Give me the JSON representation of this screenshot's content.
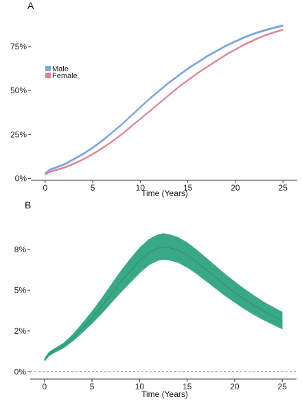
{
  "chart_data": [
    {
      "type": "area",
      "panel_label": "A",
      "xlabel": "Time (Years)",
      "ylabel": "",
      "xlim": [
        -1.5,
        26.5
      ],
      "ylim": [
        -0.01,
        0.93
      ],
      "x_ticks": [
        0,
        5,
        10,
        15,
        20,
        25
      ],
      "y_ticks": [
        0,
        0.25,
        0.5,
        0.75
      ],
      "y_tick_labels": [
        "0%",
        "25%",
        "50%",
        "75%"
      ],
      "grid": false,
      "legend_position": "top-left",
      "series": [
        {
          "name": "Male",
          "color": "#7ea6e0",
          "x": [
            0,
            0.5,
            1,
            2,
            3,
            4,
            5,
            6,
            7,
            8,
            9,
            10,
            11,
            12,
            13,
            14,
            15,
            16,
            17,
            18,
            19,
            20,
            21,
            22,
            23,
            24,
            25
          ],
          "lower": [
            0.025,
            0.045,
            0.055,
            0.075,
            0.105,
            0.135,
            0.17,
            0.21,
            0.255,
            0.3,
            0.35,
            0.4,
            0.45,
            0.495,
            0.54,
            0.58,
            0.62,
            0.655,
            0.69,
            0.72,
            0.75,
            0.775,
            0.8,
            0.82,
            0.837,
            0.852,
            0.865
          ],
          "upper": [
            0.035,
            0.055,
            0.065,
            0.085,
            0.115,
            0.145,
            0.18,
            0.22,
            0.265,
            0.31,
            0.36,
            0.41,
            0.46,
            0.505,
            0.55,
            0.59,
            0.63,
            0.665,
            0.7,
            0.73,
            0.76,
            0.785,
            0.81,
            0.83,
            0.847,
            0.862,
            0.875
          ]
        },
        {
          "name": "Female",
          "color": "#e08294",
          "x": [
            0,
            0.5,
            1,
            2,
            3,
            4,
            5,
            6,
            7,
            8,
            9,
            10,
            11,
            12,
            13,
            14,
            15,
            16,
            17,
            18,
            19,
            20,
            21,
            22,
            23,
            24,
            25
          ],
          "lower": [
            0.018,
            0.035,
            0.042,
            0.058,
            0.08,
            0.105,
            0.135,
            0.168,
            0.205,
            0.245,
            0.29,
            0.335,
            0.38,
            0.425,
            0.47,
            0.515,
            0.555,
            0.595,
            0.63,
            0.665,
            0.7,
            0.73,
            0.76,
            0.785,
            0.808,
            0.827,
            0.843
          ],
          "upper": [
            0.026,
            0.043,
            0.05,
            0.066,
            0.088,
            0.113,
            0.143,
            0.176,
            0.213,
            0.253,
            0.298,
            0.343,
            0.388,
            0.433,
            0.478,
            0.523,
            0.563,
            0.603,
            0.638,
            0.673,
            0.708,
            0.738,
            0.768,
            0.793,
            0.816,
            0.835,
            0.851
          ]
        }
      ]
    },
    {
      "type": "area",
      "panel_label": "B",
      "xlabel": "Time (Years)",
      "ylabel": "",
      "xlim": [
        -1.5,
        26.5
      ],
      "ylim": [
        -0.0045,
        0.0955
      ],
      "x_ticks": [
        0,
        5,
        10,
        15,
        20,
        25
      ],
      "y_ticks": [
        0.0,
        0.025,
        0.05,
        0.075
      ],
      "y_tick_labels": [
        "0%",
        "2%",
        "5%",
        "8%"
      ],
      "reference_line": 0.0,
      "grid": false,
      "series": [
        {
          "color": "#3aa886",
          "x": [
            0,
            0.5,
            1,
            2,
            3,
            4,
            5,
            6,
            7,
            8,
            9,
            10,
            11,
            12,
            12.5,
            13,
            14,
            15,
            16,
            17,
            18,
            19,
            20,
            21,
            22,
            23,
            24,
            25
          ],
          "lower": [
            0.0065,
            0.0098,
            0.0115,
            0.0145,
            0.0188,
            0.024,
            0.0295,
            0.0355,
            0.042,
            0.0485,
            0.0545,
            0.0605,
            0.0655,
            0.0683,
            0.0688,
            0.0685,
            0.067,
            0.064,
            0.06,
            0.0555,
            0.051,
            0.0465,
            0.0425,
            0.0385,
            0.035,
            0.0318,
            0.029,
            0.0262
          ],
          "mid": [
            0.0073,
            0.011,
            0.0128,
            0.016,
            0.0208,
            0.0268,
            0.033,
            0.04,
            0.0475,
            0.055,
            0.0615,
            0.068,
            0.073,
            0.076,
            0.0765,
            0.0762,
            0.0745,
            0.0715,
            0.0672,
            0.0625,
            0.0578,
            0.053,
            0.0485,
            0.0445,
            0.0408,
            0.0372,
            0.0342,
            0.0313
          ],
          "upper": [
            0.008,
            0.0122,
            0.014,
            0.0175,
            0.023,
            0.0298,
            0.037,
            0.0448,
            0.0532,
            0.0615,
            0.069,
            0.076,
            0.0812,
            0.0842,
            0.0847,
            0.0843,
            0.0825,
            0.0792,
            0.0747,
            0.0698,
            0.0648,
            0.0598,
            0.0552,
            0.0508,
            0.0468,
            0.043,
            0.0397,
            0.0366
          ]
        }
      ]
    }
  ]
}
